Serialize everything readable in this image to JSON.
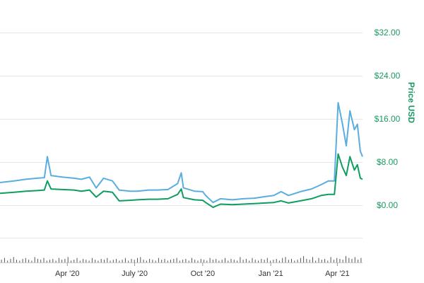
{
  "chart_data": {
    "type": "line",
    "ylabel": "Price USD",
    "ylim": [
      -8,
      40
    ],
    "y_ticks": [
      {
        "value": 0,
        "label": "$0.00"
      },
      {
        "value": 8,
        "label": "$8.00"
      },
      {
        "value": 16,
        "label": "$16.00"
      },
      {
        "value": 24,
        "label": "$24.00"
      },
      {
        "value": 32,
        "label": "$32.00"
      }
    ],
    "x_ticks": [
      {
        "date": "2020-04-01",
        "label": "Apr '20"
      },
      {
        "date": "2020-07-01",
        "label": "July '20"
      },
      {
        "date": "2020-10-01",
        "label": "Oct '20"
      },
      {
        "date": "2021-01-01",
        "label": "Jan '21"
      },
      {
        "date": "2021-04-01",
        "label": "Apr '21"
      }
    ],
    "xlim": [
      "2020-01-01",
      "2021-05-05"
    ],
    "grid": true,
    "series": [
      {
        "color": "#5aade0",
        "points": [
          [
            "2020-01-01",
            4.2
          ],
          [
            "2020-01-20",
            4.5
          ],
          [
            "2020-02-05",
            4.8
          ],
          [
            "2020-02-20",
            5.0
          ],
          [
            "2020-03-01",
            5.1
          ],
          [
            "2020-03-05",
            9.0
          ],
          [
            "2020-03-10",
            5.5
          ],
          [
            "2020-03-25",
            5.2
          ],
          [
            "2020-04-10",
            5.0
          ],
          [
            "2020-04-20",
            4.8
          ],
          [
            "2020-05-01",
            5.2
          ],
          [
            "2020-05-10",
            3.2
          ],
          [
            "2020-05-20",
            5.0
          ],
          [
            "2020-06-01",
            4.5
          ],
          [
            "2020-06-10",
            2.8
          ],
          [
            "2020-06-25",
            2.6
          ],
          [
            "2020-07-05",
            2.6
          ],
          [
            "2020-07-20",
            2.8
          ],
          [
            "2020-08-01",
            2.8
          ],
          [
            "2020-08-15",
            2.9
          ],
          [
            "2020-08-28",
            4.0
          ],
          [
            "2020-09-02",
            6.0
          ],
          [
            "2020-09-05",
            3.2
          ],
          [
            "2020-09-20",
            2.6
          ],
          [
            "2020-10-01",
            2.5
          ],
          [
            "2020-10-05",
            1.8
          ],
          [
            "2020-10-15",
            0.5
          ],
          [
            "2020-10-25",
            1.2
          ],
          [
            "2020-11-10",
            1.0
          ],
          [
            "2020-11-25",
            1.2
          ],
          [
            "2020-12-10",
            1.3
          ],
          [
            "2020-12-25",
            1.6
          ],
          [
            "2021-01-05",
            1.8
          ],
          [
            "2021-01-15",
            2.5
          ],
          [
            "2021-01-25",
            1.8
          ],
          [
            "2021-02-10",
            2.5
          ],
          [
            "2021-02-25",
            3.0
          ],
          [
            "2021-03-10",
            3.8
          ],
          [
            "2021-03-20",
            4.5
          ],
          [
            "2021-03-28",
            4.5
          ],
          [
            "2021-04-02",
            19.0
          ],
          [
            "2021-04-08",
            15.0
          ],
          [
            "2021-04-13",
            11.0
          ],
          [
            "2021-04-18",
            17.5
          ],
          [
            "2021-04-24",
            14.0
          ],
          [
            "2021-04-28",
            15.0
          ],
          [
            "2021-05-02",
            10.0
          ],
          [
            "2021-05-05",
            9.0
          ]
        ]
      },
      {
        "color": "#0f9d62",
        "points": [
          [
            "2020-01-01",
            2.2
          ],
          [
            "2020-01-20",
            2.4
          ],
          [
            "2020-02-05",
            2.6
          ],
          [
            "2020-02-20",
            2.7
          ],
          [
            "2020-03-01",
            2.8
          ],
          [
            "2020-03-05",
            4.5
          ],
          [
            "2020-03-10",
            3.0
          ],
          [
            "2020-03-25",
            2.9
          ],
          [
            "2020-04-10",
            2.8
          ],
          [
            "2020-04-20",
            2.6
          ],
          [
            "2020-05-01",
            2.8
          ],
          [
            "2020-05-10",
            1.5
          ],
          [
            "2020-05-20",
            2.6
          ],
          [
            "2020-06-01",
            2.4
          ],
          [
            "2020-06-10",
            0.8
          ],
          [
            "2020-06-25",
            0.9
          ],
          [
            "2020-07-05",
            1.0
          ],
          [
            "2020-07-20",
            1.1
          ],
          [
            "2020-08-01",
            1.1
          ],
          [
            "2020-08-15",
            1.2
          ],
          [
            "2020-08-28",
            2.0
          ],
          [
            "2020-09-02",
            3.0
          ],
          [
            "2020-09-05",
            1.4
          ],
          [
            "2020-09-20",
            1.0
          ],
          [
            "2020-10-01",
            0.9
          ],
          [
            "2020-10-05",
            0.5
          ],
          [
            "2020-10-15",
            -0.4
          ],
          [
            "2020-10-25",
            0.2
          ],
          [
            "2020-11-10",
            0.1
          ],
          [
            "2020-11-25",
            0.2
          ],
          [
            "2020-12-10",
            0.3
          ],
          [
            "2020-12-25",
            0.4
          ],
          [
            "2021-01-05",
            0.5
          ],
          [
            "2021-01-15",
            0.8
          ],
          [
            "2021-01-25",
            0.4
          ],
          [
            "2021-02-10",
            0.8
          ],
          [
            "2021-02-25",
            1.2
          ],
          [
            "2021-03-10",
            1.8
          ],
          [
            "2021-03-20",
            2.0
          ],
          [
            "2021-03-28",
            2.0
          ],
          [
            "2021-04-02",
            9.5
          ],
          [
            "2021-04-08",
            7.0
          ],
          [
            "2021-04-13",
            5.5
          ],
          [
            "2021-04-18",
            9.0
          ],
          [
            "2021-04-24",
            6.5
          ],
          [
            "2021-04-28",
            7.5
          ],
          [
            "2021-05-02",
            5.0
          ],
          [
            "2021-05-05",
            4.8
          ]
        ]
      }
    ],
    "volume": {
      "color": "#555555",
      "values": [
        3,
        5,
        2,
        4,
        6,
        3,
        2,
        4,
        5,
        3,
        2,
        6,
        4,
        3,
        5,
        2,
        3,
        4,
        2,
        5,
        3,
        4,
        6,
        2,
        3,
        5,
        2,
        4,
        3,
        2,
        5,
        3,
        2,
        4,
        3,
        5,
        2,
        3,
        4,
        2,
        3,
        5,
        2,
        4,
        3,
        5,
        6,
        3,
        2,
        4,
        3,
        2,
        5,
        3,
        4,
        2,
        3,
        4,
        5,
        2,
        3,
        4,
        2,
        5,
        3,
        2,
        4,
        3,
        2,
        5,
        3,
        4,
        2,
        3,
        5,
        2,
        4,
        3,
        2,
        6,
        3,
        4,
        2,
        5,
        3,
        2,
        4,
        3,
        5,
        2,
        3,
        4,
        2,
        5,
        6,
        3,
        4,
        2,
        3,
        5,
        7,
        4,
        3,
        6,
        2,
        5,
        3,
        4,
        2,
        6,
        3,
        5,
        4,
        3,
        7,
        5,
        4,
        6,
        3,
        5
      ]
    }
  }
}
